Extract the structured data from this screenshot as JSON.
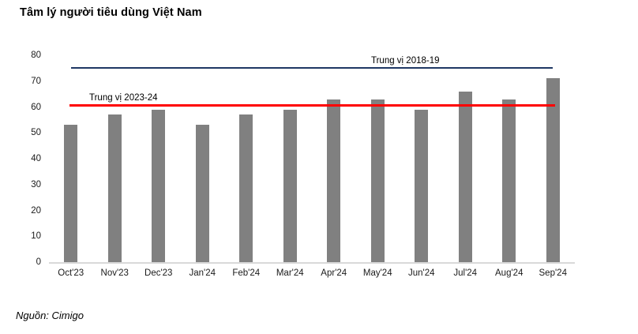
{
  "title": "Tâm lý người tiêu dùng Việt Nam",
  "source": "Nguồn: Cimigo",
  "colors": {
    "bar": "#808080",
    "median_2018_19_line": "#1f3864",
    "median_2023_24_line": "#ff0000",
    "baseline": "#d9d9d9",
    "text": "#000000"
  },
  "chart_data": {
    "type": "bar",
    "title": "Tâm lý người tiêu dùng Việt Nam",
    "categories": [
      "Oct'23",
      "Nov'23",
      "Dec'23",
      "Jan'24",
      "Feb'24",
      "Mar'24",
      "Apr'24",
      "May'24",
      "Jun'24",
      "Jul'24",
      "Aug'24",
      "Sep'24"
    ],
    "values": [
      53,
      57,
      59,
      53,
      57,
      59,
      63,
      63,
      59,
      66,
      63,
      71
    ],
    "xlabel": "",
    "ylabel": "",
    "ylim": [
      0,
      80
    ],
    "ytick_step": 10,
    "grid": false,
    "legend_position": "none",
    "reference_lines": [
      {
        "label": "Trung vị 2018-19",
        "value": 75,
        "color": "#1f3864"
      },
      {
        "label": "Trung vị 2023-24",
        "value": 60.5,
        "color": "#ff0000"
      }
    ]
  }
}
